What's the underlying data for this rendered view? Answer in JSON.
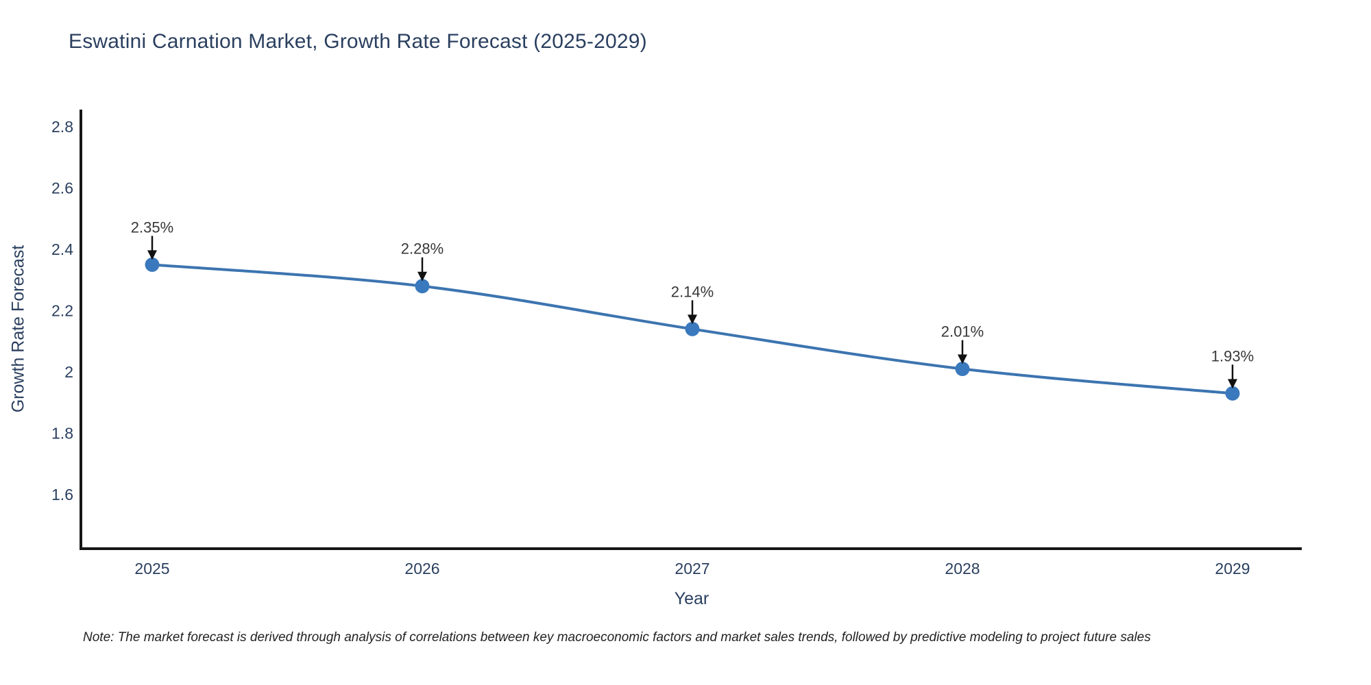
{
  "page": {
    "title": "Eswatini Carnation Market, Growth Rate Forecast (2025-2029)"
  },
  "footnote": "Note: The market forecast is derived through analysis of correlations between key macroeconomic factors and market sales trends, followed by predictive modeling to project future sales",
  "chart_data": {
    "type": "line",
    "title": "Eswatini Carnation Market, Growth Rate Forecast (2025-2029)",
    "x": [
      2025,
      2026,
      2027,
      2028,
      2029
    ],
    "series": [
      {
        "name": "Growth Rate Forecast",
        "values": [
          2.35,
          2.28,
          2.14,
          2.01,
          1.93
        ]
      }
    ],
    "data_labels": [
      "2.35%",
      "2.28%",
      "2.14%",
      "2.01%",
      "1.93%"
    ],
    "xlabel": "Year",
    "ylabel": "Growth Rate Forecast",
    "xtick_labels": [
      "2025",
      "2026",
      "2027",
      "2028",
      "2029"
    ],
    "ytick_values": [
      2.8,
      2.6,
      2.4,
      2.2,
      2.0,
      1.8,
      1.6
    ],
    "ytick_labels": [
      "2.8",
      "2.6",
      "2.4",
      "2.2",
      "2",
      "1.8",
      "1.6"
    ],
    "ylim": [
      1.42,
      2.86
    ],
    "xlim": [
      2024.74,
      2029.26
    ],
    "line_shape": "spline",
    "grid": false,
    "legend": "none",
    "annotation_arrows": true,
    "colors": {
      "line": "#3c74b0",
      "marker": "#3a79bd",
      "axis": "#161616",
      "tick_text": "#2a3f5f",
      "annotation_text": "#383838",
      "arrow": "#111111",
      "note_text": "#222222",
      "background": "#ffffff"
    }
  }
}
